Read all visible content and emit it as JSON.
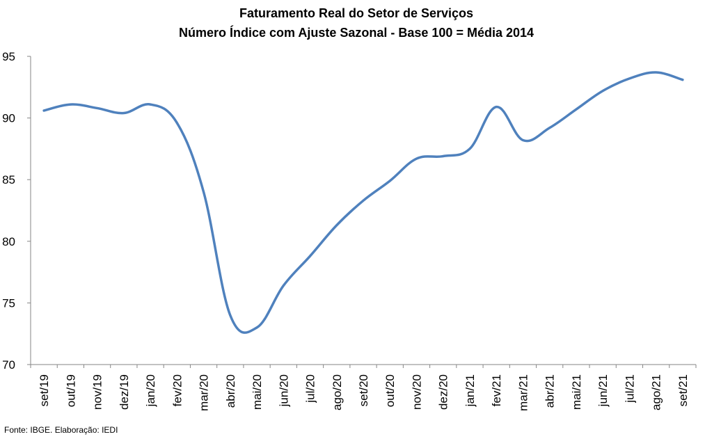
{
  "chart_data": {
    "type": "line",
    "title": "Faturamento Real do Setor de Serviços",
    "subtitle": "Número Índice com Ajuste Sazonal - Base 100 = Média 2014",
    "xlabel": "",
    "ylabel": "",
    "categories": [
      "set/19",
      "out/19",
      "nov/19",
      "dez/19",
      "jan/20",
      "fev/20",
      "mar/20",
      "abr/20",
      "mai/20",
      "jun/20",
      "jul/20",
      "ago/20",
      "set/20",
      "out/20",
      "nov/20",
      "dez/20",
      "jan/21",
      "fev/21",
      "mar/21",
      "abr/21",
      "mai/21",
      "jun/21",
      "jul/21",
      "ago/21",
      "set/21"
    ],
    "series": [
      {
        "values": [
          90.6,
          91.1,
          90.8,
          90.4,
          91.1,
          89.6,
          84.0,
          74.0,
          73.0,
          76.4,
          78.8,
          81.3,
          83.3,
          84.9,
          86.7,
          86.9,
          87.5,
          90.9,
          88.2,
          89.2,
          90.7,
          92.2,
          93.2,
          93.7,
          93.1
        ],
        "color": "#4F81BD"
      }
    ],
    "ylim": [
      70,
      95
    ],
    "yticks": [
      70,
      75,
      80,
      85,
      90,
      95
    ],
    "grid": false,
    "legend": "none"
  },
  "source": "Fonte: IBGE. Elaboração: IEDI"
}
